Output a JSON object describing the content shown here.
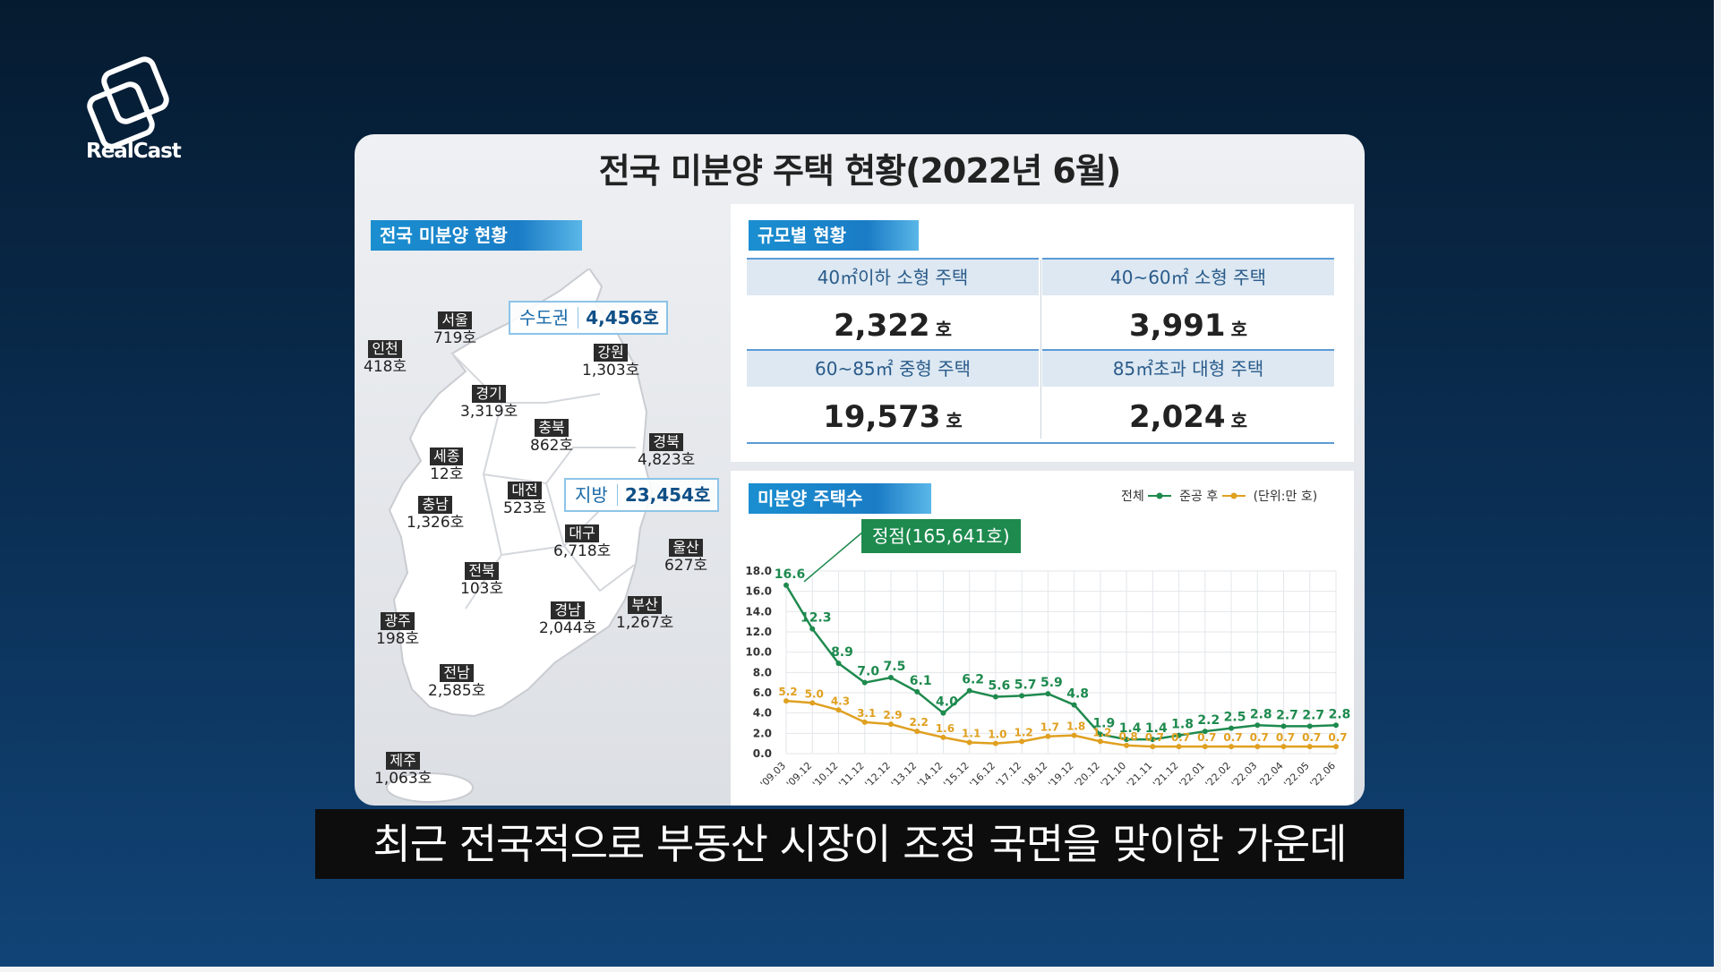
{
  "logo": {
    "text": "RealCast"
  },
  "card": {
    "title": "전국 미분양 주택 현황(2022년 6월)"
  },
  "national": {
    "tag": "전국 미분양 현황",
    "capital": {
      "label": "수도권",
      "value": "4,456호"
    },
    "local": {
      "label": "지방",
      "value": "23,454호"
    },
    "regions": [
      {
        "name": "서울",
        "value": "719호"
      },
      {
        "name": "인천",
        "value": "418호"
      },
      {
        "name": "강원",
        "value": "1,303호"
      },
      {
        "name": "경기",
        "value": "3,319호"
      },
      {
        "name": "충북",
        "value": "862호"
      },
      {
        "name": "경북",
        "value": "4,823호"
      },
      {
        "name": "세종",
        "value": "12호"
      },
      {
        "name": "대전",
        "value": "523호"
      },
      {
        "name": "충남",
        "value": "1,326호"
      },
      {
        "name": "대구",
        "value": "6,718호"
      },
      {
        "name": "울산",
        "value": "627호"
      },
      {
        "name": "전북",
        "value": "103호"
      },
      {
        "name": "경남",
        "value": "2,044호"
      },
      {
        "name": "부산",
        "value": "1,267호"
      },
      {
        "name": "광주",
        "value": "198호"
      },
      {
        "name": "전남",
        "value": "2,585호"
      },
      {
        "name": "제주",
        "value": "1,063호"
      }
    ]
  },
  "size": {
    "tag": "규모별 현황",
    "items": [
      {
        "label": "40㎡이하 소형 주택",
        "value": "2,322",
        "unit": "호"
      },
      {
        "label": "40~60㎡ 소형 주택",
        "value": "3,991",
        "unit": "호"
      },
      {
        "label": "60~85㎡ 중형 주택",
        "value": "19,573",
        "unit": "호"
      },
      {
        "label": "85㎡초과 대형 주택",
        "value": "2,024",
        "unit": "호"
      }
    ]
  },
  "chart_panel": {
    "tag": "미분양 주택수",
    "peak_label": "정점(165,641호)",
    "legend_total": "전체",
    "legend_after": "준공 후",
    "unit_note": "(단위:만 호)"
  },
  "chart_data": {
    "type": "line",
    "x": [
      "'09.03",
      "'09.12",
      "'10.12",
      "'11.12",
      "'12.12",
      "'13.12",
      "'14.12",
      "'15.12",
      "'16.12",
      "'17.12",
      "'18.12",
      "'19.12",
      "'20.12",
      "'21.10",
      "'21.11",
      "'21.12",
      "'22.01",
      "'22.02",
      "'22.03",
      "'22.04",
      "'22.05",
      "'22.06"
    ],
    "series": [
      {
        "name": "전체",
        "color": "#1e8a4e",
        "values": [
          16.6,
          12.3,
          8.9,
          7.0,
          7.5,
          6.1,
          4.0,
          6.2,
          5.6,
          5.7,
          5.9,
          4.8,
          1.9,
          1.4,
          1.4,
          1.8,
          2.2,
          2.5,
          2.8,
          2.7,
          2.7,
          2.8
        ]
      },
      {
        "name": "준공 후",
        "color": "#e0a020",
        "values": [
          5.2,
          5.0,
          4.3,
          3.1,
          2.9,
          2.2,
          1.6,
          1.1,
          1.0,
          1.2,
          1.7,
          1.8,
          1.2,
          0.8,
          0.7,
          0.7,
          0.7,
          0.7,
          0.7,
          0.7,
          0.7,
          0.7
        ]
      }
    ],
    "yticks": [
      "0.0",
      "2.0",
      "4.0",
      "6.0",
      "8.0",
      "10.0",
      "12.0",
      "14.0",
      "16.0",
      "18.0"
    ],
    "ylim": [
      0,
      18
    ],
    "grid": true
  },
  "subtitle": "최근 전국적으로 부동산 시장이 조정 국면을 맞이한 가운데"
}
